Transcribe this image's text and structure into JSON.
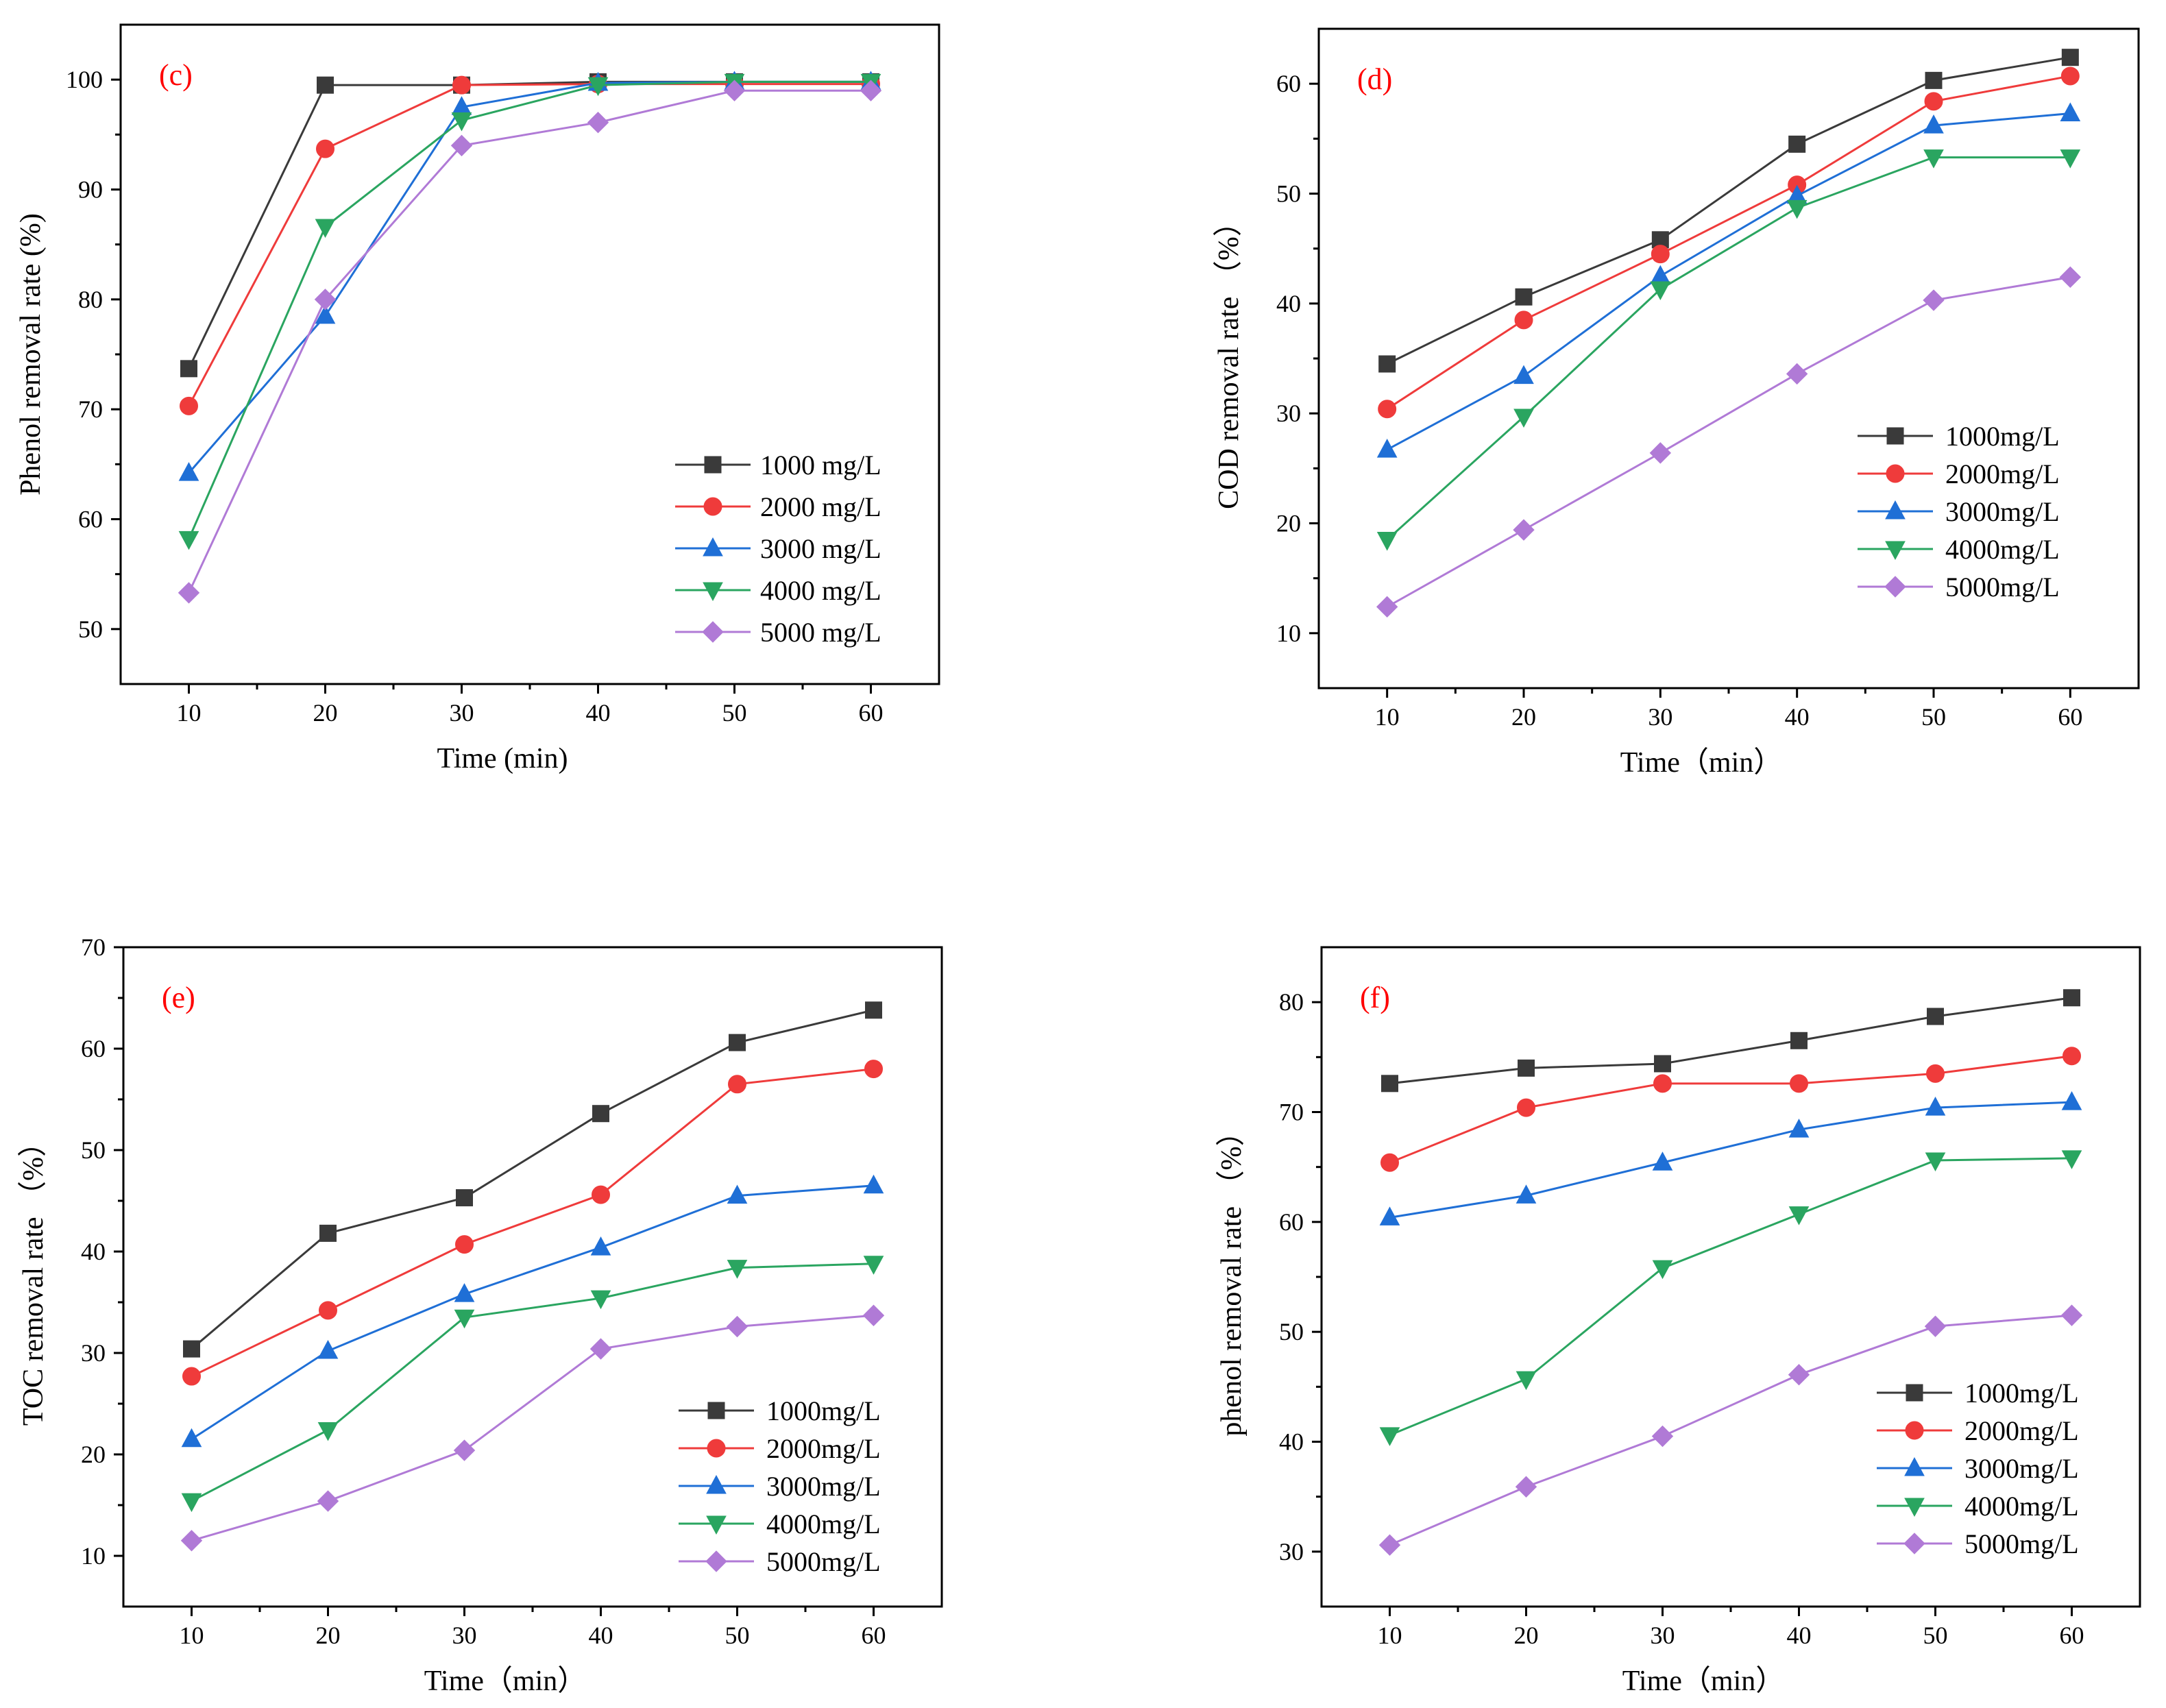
{
  "figure": {
    "background": "#ffffff",
    "panel_label_color": "#ff0000"
  },
  "series_styles": [
    {
      "color": "#3a3a3a",
      "marker": "square"
    },
    {
      "color": "#ef3b3b",
      "marker": "circle"
    },
    {
      "color": "#1f6fd6",
      "marker": "triangle-up"
    },
    {
      "color": "#2aa560",
      "marker": "triangle-down"
    },
    {
      "color": "#b07ad6",
      "marker": "diamond"
    }
  ],
  "chart_data": [
    {
      "type": "line",
      "panel_label": "(c)",
      "xlabel": "Time (min)",
      "ylabel": "Phenol removal rate (%)",
      "x": [
        10,
        20,
        30,
        40,
        50,
        60
      ],
      "xticks": [
        10,
        20,
        30,
        40,
        50,
        60
      ],
      "xlim": [
        5,
        65
      ],
      "yticks": [
        50,
        60,
        70,
        80,
        90,
        100
      ],
      "ylim": [
        45,
        105
      ],
      "legend_position": "bottom-right",
      "series": [
        {
          "name": "1000 mg/L",
          "values": [
            73.7,
            99.5,
            99.5,
            99.8,
            99.8,
            99.8
          ]
        },
        {
          "name": "2000 mg/L",
          "values": [
            70.3,
            93.7,
            99.5,
            99.6,
            99.6,
            99.6
          ]
        },
        {
          "name": "3000 mg/L",
          "values": [
            64.2,
            78.5,
            97.5,
            99.7,
            99.8,
            99.8
          ]
        },
        {
          "name": "4000 mg/L",
          "values": [
            58.2,
            86.6,
            96.3,
            99.5,
            99.8,
            99.8
          ]
        },
        {
          "name": "5000 mg/L",
          "values": [
            53.3,
            80.0,
            94.0,
            96.1,
            99.0,
            99.0
          ]
        }
      ]
    },
    {
      "type": "line",
      "panel_label": "(d)",
      "xlabel": "Time（min）",
      "ylabel": "COD removal rate （%）",
      "x": [
        10,
        20,
        30,
        40,
        50,
        60
      ],
      "xticks": [
        10,
        20,
        30,
        40,
        50,
        60
      ],
      "xlim": [
        5,
        65
      ],
      "yticks": [
        10,
        20,
        30,
        40,
        50,
        60
      ],
      "ylim": [
        5,
        65
      ],
      "legend_position": "right",
      "series": [
        {
          "name": "1000mg/L",
          "values": [
            34.5,
            40.6,
            45.8,
            54.5,
            60.3,
            62.4
          ]
        },
        {
          "name": "2000mg/L",
          "values": [
            30.4,
            38.5,
            44.5,
            50.8,
            58.4,
            60.7
          ]
        },
        {
          "name": "3000mg/L",
          "values": [
            26.7,
            33.4,
            42.5,
            49.8,
            56.2,
            57.3
          ]
        },
        {
          "name": "4000mg/L",
          "values": [
            18.5,
            29.7,
            41.3,
            48.7,
            53.3,
            53.3
          ]
        },
        {
          "name": "5000mg/L",
          "values": [
            12.4,
            19.4,
            26.4,
            33.6,
            40.3,
            42.4
          ]
        }
      ]
    },
    {
      "type": "line",
      "panel_label": "(e)",
      "xlabel": "Time（min）",
      "ylabel": "TOC removal rate （%）",
      "x": [
        10,
        20,
        30,
        40,
        50,
        60
      ],
      "xticks": [
        10,
        20,
        30,
        40,
        50,
        60
      ],
      "xlim": [
        5,
        65
      ],
      "yticks": [
        10,
        20,
        30,
        40,
        50,
        60,
        70
      ],
      "ylim": [
        5,
        70
      ],
      "legend_position": "bottom-right",
      "series": [
        {
          "name": "1000mg/L",
          "values": [
            30.4,
            41.8,
            45.3,
            53.6,
            60.6,
            63.8
          ]
        },
        {
          "name": "2000mg/L",
          "values": [
            27.7,
            34.2,
            40.7,
            45.6,
            56.5,
            58.0
          ]
        },
        {
          "name": "3000mg/L",
          "values": [
            21.5,
            30.2,
            35.8,
            40.4,
            45.5,
            46.5
          ]
        },
        {
          "name": "4000mg/L",
          "values": [
            15.4,
            22.4,
            33.5,
            35.4,
            38.4,
            38.8
          ]
        },
        {
          "name": "5000mg/L",
          "values": [
            11.5,
            15.4,
            20.4,
            30.4,
            32.6,
            33.7
          ]
        }
      ]
    },
    {
      "type": "line",
      "panel_label": "(f)",
      "xlabel": "Time（min）",
      "ylabel": "phenol removal rate （%）",
      "x": [
        10,
        20,
        30,
        40,
        50,
        60
      ],
      "xticks": [
        10,
        20,
        30,
        40,
        50,
        60
      ],
      "xlim": [
        5,
        65
      ],
      "yticks": [
        30,
        40,
        50,
        60,
        70,
        80
      ],
      "ylim": [
        25,
        85
      ],
      "legend_position": "bottom-right",
      "series": [
        {
          "name": "1000mg/L",
          "values": [
            72.6,
            74.0,
            74.4,
            76.5,
            78.7,
            80.4
          ]
        },
        {
          "name": "2000mg/L",
          "values": [
            65.4,
            70.4,
            72.6,
            72.6,
            73.5,
            75.1
          ]
        },
        {
          "name": "3000mg/L",
          "values": [
            60.4,
            62.4,
            65.4,
            68.4,
            70.4,
            70.9
          ]
        },
        {
          "name": "4000mg/L",
          "values": [
            40.6,
            45.7,
            55.8,
            60.7,
            65.6,
            65.8
          ]
        },
        {
          "name": "5000mg/L",
          "values": [
            30.6,
            35.9,
            40.5,
            46.1,
            50.5,
            51.5
          ]
        }
      ]
    }
  ]
}
